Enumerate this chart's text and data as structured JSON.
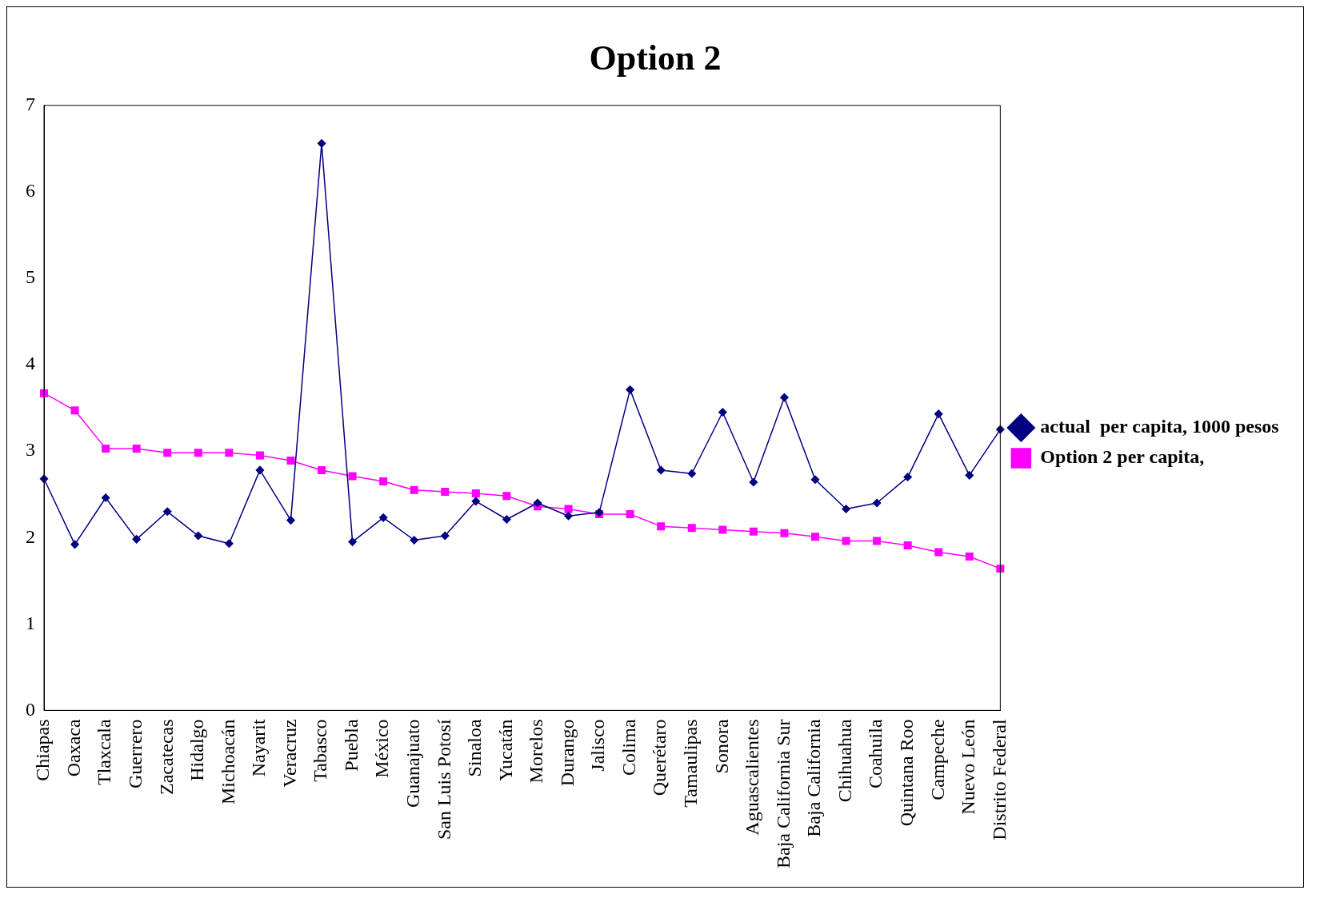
{
  "chart_data": {
    "type": "line",
    "title": "Option 2",
    "categories": [
      "Chiapas",
      "Oaxaca",
      "Tlaxcala",
      "Guerrero",
      "Zacatecas",
      "Hidalgo",
      "Michoacán",
      "Nayarit",
      "Veracruz",
      "Tabasco",
      "Puebla",
      "México",
      "Guanajuato",
      "San Luis Potosí",
      "Sinaloa",
      "Yucatán",
      "Morelos",
      "Durango",
      "Jalisco",
      "Colima",
      "Querétaro",
      "Tamaulipas",
      "Sonora",
      "Aguascalientes",
      "Baja California Sur",
      "Baja California",
      "Chihuahua",
      "Coahuila",
      "Quintana Roo",
      "Campeche",
      "Nuevo León",
      "Distrito Federal"
    ],
    "series": [
      {
        "name": "actual  per capita, 1000 pesos",
        "color": "#000080",
        "marker": "diamond",
        "values": [
          2.68,
          1.92,
          2.46,
          1.98,
          2.3,
          2.02,
          1.93,
          2.78,
          2.2,
          6.56,
          1.95,
          2.23,
          1.97,
          2.02,
          2.42,
          2.21,
          2.4,
          2.25,
          2.29,
          3.71,
          2.78,
          2.74,
          3.45,
          2.64,
          3.62,
          2.67,
          2.33,
          2.4,
          2.7,
          3.43,
          2.72,
          3.25
        ]
      },
      {
        "name": "Option 2 per capita,",
        "color": "#ff00ff",
        "marker": "square",
        "values": [
          3.67,
          3.47,
          3.03,
          3.03,
          2.98,
          2.98,
          2.98,
          2.95,
          2.89,
          2.78,
          2.71,
          2.65,
          2.55,
          2.53,
          2.51,
          2.48,
          2.36,
          2.33,
          2.27,
          2.27,
          2.13,
          2.11,
          2.09,
          2.07,
          2.05,
          2.01,
          1.96,
          1.96,
          1.91,
          1.83,
          1.78,
          1.64
        ]
      }
    ],
    "ylim": [
      0,
      7
    ],
    "yticks": [
      0,
      1,
      2,
      3,
      4,
      5,
      6,
      7
    ],
    "grid": false,
    "legend": "right",
    "line_style": "solid"
  }
}
